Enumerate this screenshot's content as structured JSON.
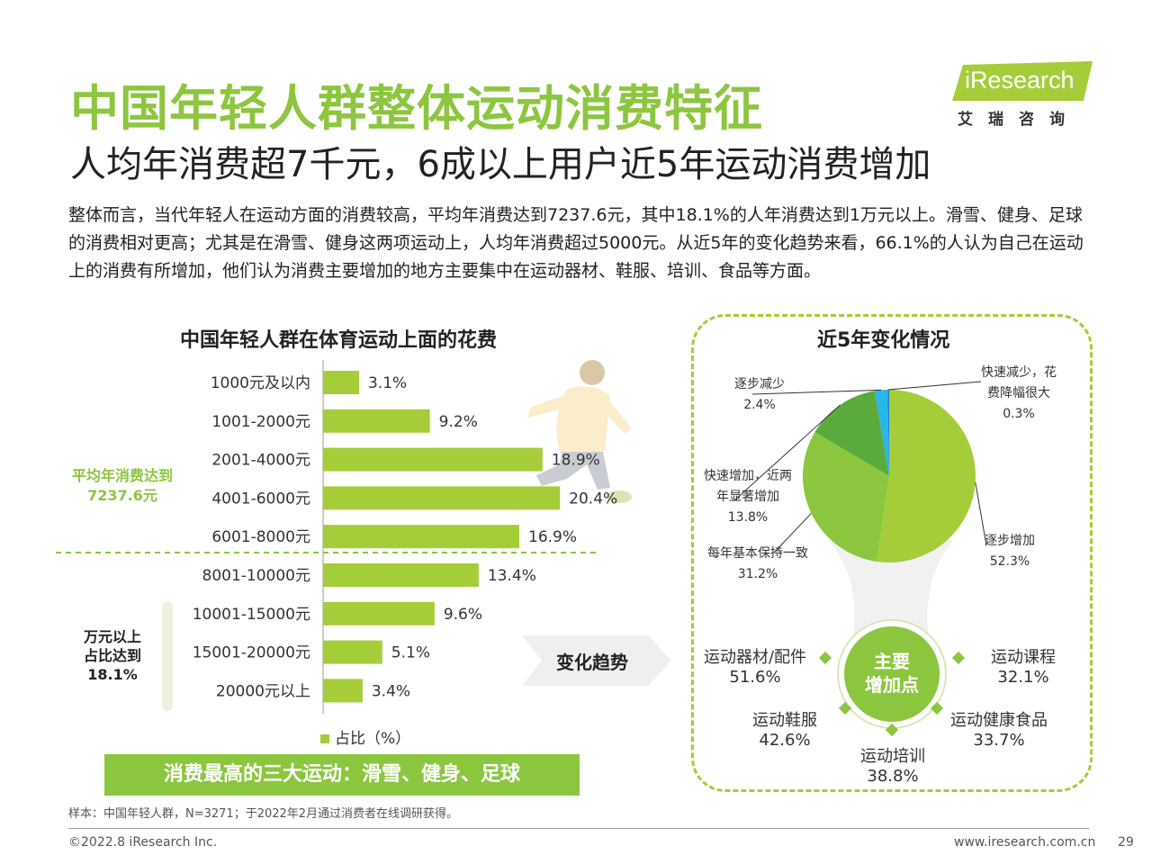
{
  "title": "中国年轻人群整体运动消费特征",
  "subtitle": "人均年消费超7千元，6成以上用户近5年运动消费增加",
  "intro": "整体而言，当代年轻人在运动方面的消费较高，平均年消费达到7237.6元，其中18.1%的人年消费达到1万元以上。滑雪、健身、足球的消费相对更高；尤其是在滑雪、健身这两项运动上，人均年消费超过5000元。从近5年的变化趋势来看，66.1%的人认为自己在运动上的消费有所增加，他们认为消费主要增加的地方主要集中在运动器材、鞋服、培训、食品等方面。",
  "logo": {
    "text": "iResearch",
    "cn": "艾瑞咨询"
  },
  "colors": {
    "accent": "#8cc63f",
    "bar": "#a5cd39",
    "dark_green": "#5aaa3c",
    "cyan": "#29b6e8"
  },
  "chart_data": [
    {
      "type": "bar",
      "orientation": "horizontal",
      "title": "中国年轻人群在体育运动上面的花费",
      "categories": [
        "1000元及以内",
        "1001-2000元",
        "2001-4000元",
        "4001-6000元",
        "6001-8000元",
        "8001-10000元",
        "10001-15000元",
        "15001-20000元",
        "20000元以上"
      ],
      "series": [
        {
          "name": "占比（%）",
          "values": [
            3.1,
            9.2,
            18.9,
            20.4,
            16.9,
            13.4,
            9.6,
            5.1,
            3.4
          ]
        }
      ],
      "value_labels": [
        "3.1%",
        "9.2%",
        "18.9%",
        "20.4%",
        "16.9%",
        "13.4%",
        "9.6%",
        "5.1%",
        "3.4%"
      ],
      "xlim": [
        0,
        25
      ],
      "legend": "bottom",
      "annotations": [
        "平均年消费达到7237.6元",
        "万元以上占比达到18.1%"
      ]
    },
    {
      "type": "pie",
      "title": "近5年变化情况",
      "slices": [
        {
          "label": "逐步增加",
          "value": 52.3,
          "value_label": "52.3%",
          "color": "#a5cd39"
        },
        {
          "label": "每年基本保持一致",
          "value": 31.2,
          "value_label": "31.2%",
          "color": "#8cc63f"
        },
        {
          "label": "快速增加，近两年显著增加",
          "value": 13.8,
          "value_label": "13.8%",
          "color": "#5aaa3c"
        },
        {
          "label": "逐步减少",
          "value": 2.4,
          "value_label": "2.4%",
          "color": "#29b6e8"
        },
        {
          "label": "快速减少，花费降幅很大",
          "value": 0.3,
          "value_label": "0.3%",
          "color": "#1d7fc4"
        }
      ]
    }
  ],
  "bars_labels": {
    "avg_note_line1": "平均年消费达到",
    "avg_note_line2": "7237.6元",
    "wan_note_line1": "万元以上",
    "wan_note_line2": "占比达到",
    "wan_note_line3": "18.1%",
    "legend": "占比（%）"
  },
  "pie_labels": {
    "l0a": "逐步增加",
    "l0b": "52.3%",
    "l1a": "每年基本保持一致",
    "l1b": "31.2%",
    "l2a": "快速增加，近两",
    "l2b": "年显著增加",
    "l2c": "13.8%",
    "l3a": "逐步减少",
    "l3b": "2.4%",
    "l4a": "快速减少，花",
    "l4b": "费降幅很大",
    "l4c": "0.3%"
  },
  "banner": "消费最高的三大运动：滑雪、健身、足球",
  "trend_label": "变化趋势",
  "key_points": {
    "center_line1": "主要",
    "center_line2": "增加点",
    "items": [
      {
        "label": "运动器材/配件",
        "value": "51.6%"
      },
      {
        "label": "运动课程",
        "value": "32.1%"
      },
      {
        "label": "运动鞋服",
        "value": "42.6%"
      },
      {
        "label": "运动健康食品",
        "value": "33.7%"
      },
      {
        "label": "运动培训",
        "value": "38.8%"
      }
    ]
  },
  "footnote": "样本：中国年轻人群，N=3271；于2022年2月通过消费者在线调研获得。",
  "copyright": "©2022.8 iResearch Inc.",
  "website": "www.iresearch.com.cn",
  "page_number": "29"
}
